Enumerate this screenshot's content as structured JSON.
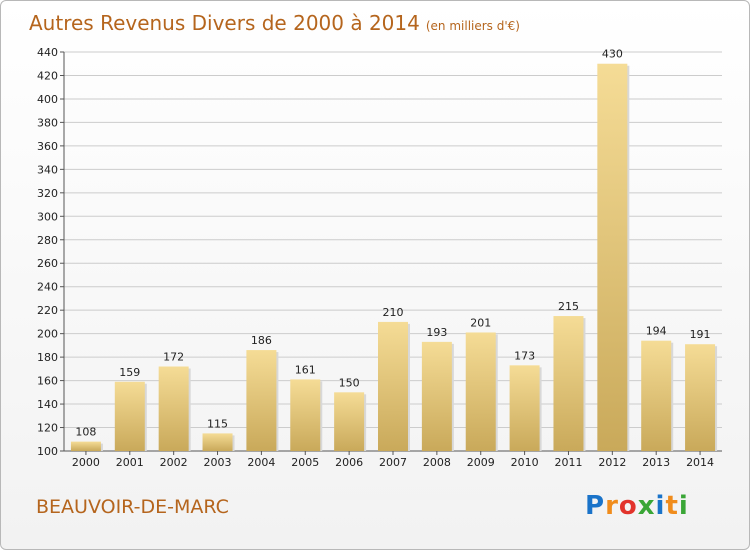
{
  "title": "Autres Revenus Divers de 2000 à 2014",
  "unit_label": "(en milliers d'€)",
  "commune": "BEAUVOIR-DE-MARC",
  "logo": {
    "letters": [
      "P",
      "r",
      "o",
      "x",
      "i",
      "t",
      "i"
    ],
    "colors": [
      "#1a73c9",
      "#f08c1c",
      "#e2332b",
      "#3aa636",
      "#1a73c9",
      "#f08c1c",
      "#3aa636"
    ]
  },
  "colors": {
    "title": "#b5651d",
    "bar_light": "#f5dc96",
    "bar_dark": "#c9a95a",
    "grid": "#cccccc"
  },
  "chart_data": {
    "type": "bar",
    "categories": [
      "2000",
      "2001",
      "2002",
      "2003",
      "2004",
      "2005",
      "2006",
      "2007",
      "2008",
      "2009",
      "2010",
      "2011",
      "2012",
      "2013",
      "2014"
    ],
    "values": [
      108,
      159,
      172,
      115,
      186,
      161,
      150,
      210,
      193,
      201,
      173,
      215,
      430,
      194,
      191
    ],
    "ylim": [
      100,
      440
    ],
    "yticks": [
      100,
      120,
      140,
      160,
      180,
      200,
      220,
      240,
      260,
      280,
      300,
      320,
      340,
      360,
      380,
      400,
      420,
      440
    ],
    "grid": true,
    "xlabel": "",
    "ylabel": ""
  }
}
